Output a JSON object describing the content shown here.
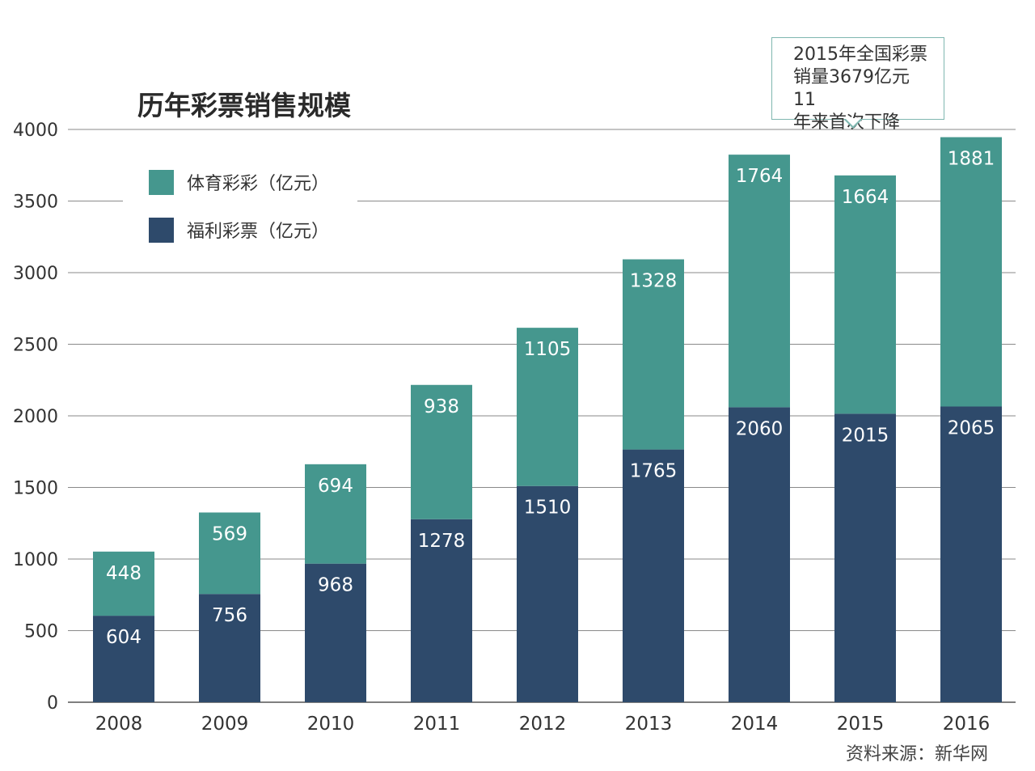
{
  "chart_data": {
    "type": "bar",
    "stacked": true,
    "title": "历年彩票销售规模",
    "categories": [
      "2008",
      "2009",
      "2010",
      "2011",
      "2012",
      "2013",
      "2014",
      "2015",
      "2016"
    ],
    "series": [
      {
        "name": "福利彩票（亿元）",
        "color": "#2e4a6b",
        "values": [
          604,
          756,
          968,
          1278,
          1510,
          1765,
          2060,
          2015,
          2065
        ]
      },
      {
        "name": "体育彩彩（亿元）",
        "color": "#45978e",
        "values": [
          448,
          569,
          694,
          938,
          1105,
          1328,
          1764,
          1664,
          1881
        ]
      }
    ],
    "y_ticks": [
      "0",
      "500",
      "1000",
      "1500",
      "2000",
      "2500",
      "3000",
      "3500",
      "4000"
    ],
    "ylim": [
      0,
      4000
    ],
    "xlabel": "",
    "ylabel": "",
    "grid": true,
    "legend_position": "top-left",
    "annotation": {
      "category": "2015",
      "lines": [
        "2015年全国彩票",
        "销量3679亿元 11",
        "年来首次下降"
      ]
    },
    "source": "资料来源：新华网"
  }
}
